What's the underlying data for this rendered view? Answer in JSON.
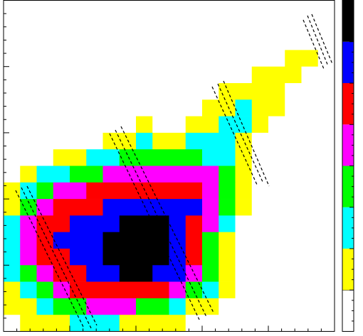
{
  "chart_data": {
    "type": "heatmap",
    "colors": [
      "#ffff00",
      "#00ffff",
      "#00ff00",
      "#ff00ff",
      "#ff0000",
      "#0000ff",
      "#000000"
    ],
    "z": [
      [
        0,
        0,
        0,
        0,
        0,
        0,
        0,
        0,
        0,
        0,
        0,
        0,
        0,
        0,
        0,
        0,
        0,
        0,
        0,
        0
      ],
      [
        0,
        0,
        0,
        0,
        0,
        0,
        0,
        0,
        0,
        0,
        0,
        0,
        0,
        0,
        0,
        0,
        0,
        0,
        0,
        0
      ],
      [
        0,
        0,
        0,
        0,
        0,
        0,
        0,
        0,
        0,
        0,
        0,
        0,
        0,
        0,
        0,
        0,
        0,
        0,
        0,
        0
      ],
      [
        0,
        0,
        0,
        0,
        0,
        0,
        0,
        0,
        0,
        0,
        0,
        0,
        0,
        0,
        0,
        0,
        0,
        1,
        1,
        0
      ],
      [
        0,
        0,
        0,
        0,
        0,
        0,
        0,
        0,
        0,
        0,
        0,
        0,
        0,
        0,
        0,
        1,
        1,
        1,
        0,
        0
      ],
      [
        0,
        0,
        0,
        0,
        0,
        0,
        0,
        0,
        0,
        0,
        0,
        0,
        0,
        1,
        1,
        1,
        1,
        0,
        0,
        0
      ],
      [
        0,
        0,
        0,
        0,
        0,
        0,
        0,
        0,
        0,
        0,
        0,
        0,
        1,
        1,
        2,
        1,
        1,
        0,
        0,
        0
      ],
      [
        0,
        0,
        0,
        0,
        0,
        0,
        0,
        0,
        1,
        0,
        0,
        1,
        1,
        2,
        2,
        1,
        0,
        0,
        0,
        0
      ],
      [
        0,
        0,
        0,
        0,
        0,
        0,
        1,
        1,
        2,
        1,
        1,
        2,
        2,
        2,
        1,
        0,
        0,
        0,
        0,
        0
      ],
      [
        0,
        0,
        0,
        1,
        1,
        2,
        2,
        3,
        3,
        3,
        3,
        3,
        2,
        2,
        1,
        0,
        0,
        0,
        0,
        0
      ],
      [
        0,
        1,
        2,
        2,
        3,
        3,
        4,
        4,
        4,
        4,
        4,
        4,
        4,
        3,
        1,
        0,
        0,
        0,
        0,
        0
      ],
      [
        1,
        2,
        3,
        4,
        4,
        5,
        5,
        5,
        5,
        5,
        5,
        5,
        4,
        3,
        1,
        0,
        0,
        0,
        0,
        0
      ],
      [
        1,
        3,
        4,
        5,
        5,
        5,
        6,
        6,
        6,
        6,
        6,
        6,
        4,
        3,
        1,
        0,
        0,
        0,
        0,
        0
      ],
      [
        2,
        4,
        5,
        5,
        6,
        6,
        6,
        7,
        7,
        7,
        6,
        5,
        4,
        2,
        0,
        0,
        0,
        0,
        0,
        0
      ],
      [
        2,
        4,
        5,
        6,
        6,
        6,
        7,
        7,
        7,
        7,
        6,
        5,
        3,
        1,
        0,
        0,
        0,
        0,
        0,
        0
      ],
      [
        2,
        4,
        5,
        5,
        6,
        6,
        7,
        7,
        7,
        7,
        6,
        5,
        3,
        1,
        0,
        0,
        0,
        0,
        0,
        0
      ],
      [
        2,
        3,
        4,
        5,
        5,
        6,
        6,
        7,
        7,
        6,
        6,
        4,
        3,
        1,
        0,
        0,
        0,
        0,
        0,
        0
      ],
      [
        1,
        2,
        3,
        4,
        5,
        5,
        5,
        5,
        5,
        5,
        4,
        3,
        2,
        1,
        0,
        0,
        0,
        0,
        0,
        0
      ],
      [
        1,
        1,
        2,
        3,
        3,
        4,
        4,
        4,
        3,
        3,
        2,
        1,
        1,
        0,
        0,
        0,
        0,
        0,
        0,
        0
      ],
      [
        0,
        1,
        1,
        1,
        2,
        2,
        2,
        1,
        1,
        1,
        1,
        0,
        0,
        0,
        0,
        0,
        0,
        0,
        0,
        0
      ]
    ]
  }
}
